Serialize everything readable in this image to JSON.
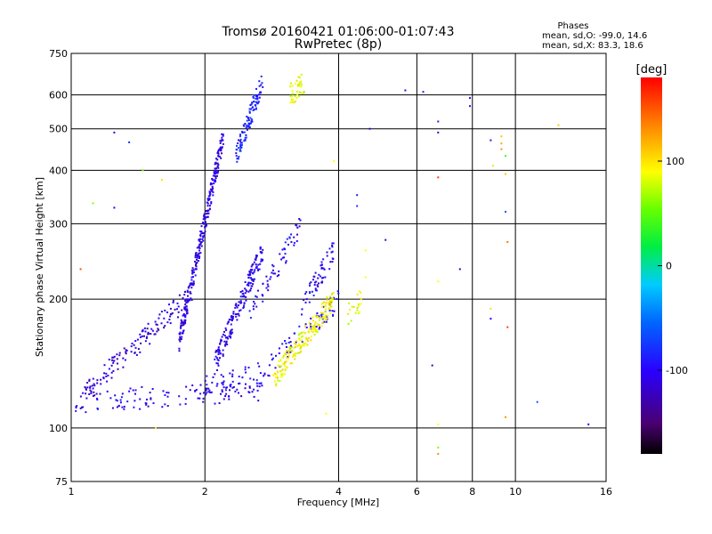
{
  "chart_data": {
    "type": "scatter",
    "title": "Tromsø 20160421 01:06:00-01:07:43",
    "subtitle": "RwPretec (8p)",
    "xlabel": "Frequency [MHz]",
    "ylabel": "Stationary phase Virtual Height [km]",
    "x_scale": "log",
    "y_scale": "log",
    "xlim": [
      1,
      16
    ],
    "ylim": [
      75,
      750
    ],
    "x_ticks": [
      "1",
      "2",
      "4",
      "6",
      "8",
      "10",
      "16"
    ],
    "y_ticks": [
      "750",
      "600",
      "500",
      "400",
      "300",
      "200",
      "100",
      "75"
    ],
    "grid": true,
    "phase_stats": {
      "heading": "Phases",
      "line_o": "mean, sd,O: -99.0, 14.6",
      "line_x": "mean, sd,X: 83.3, 18.6"
    },
    "colorbar": {
      "unit": "[deg]",
      "ticks": [
        "100",
        "0",
        "-100"
      ],
      "range": [
        -180,
        180
      ],
      "colormap": "rainbow"
    },
    "traces": [
      {
        "x_range": [
          1.02,
          2.7
        ],
        "y_start": 115,
        "y_end": 123,
        "phase_deg": -105,
        "n": 120
      },
      {
        "x_range": [
          2.0,
          2.7
        ],
        "y_start": 125,
        "y_end": 135,
        "phase_deg": -100,
        "n": 40
      },
      {
        "x_range": [
          2.7,
          4.0
        ],
        "y_start": 135,
        "y_end": 200,
        "phase_deg": -100,
        "n": 70
      },
      {
        "x_range": [
          1.05,
          1.9
        ],
        "y_start": 118,
        "y_end": 210,
        "phase_deg": -112,
        "n": 150
      },
      {
        "x_range": [
          1.75,
          2.2
        ],
        "y_start": 160,
        "y_end": 480,
        "phase_deg": -108,
        "n": 280
      },
      {
        "x_range": [
          2.1,
          2.7
        ],
        "y_start": 140,
        "y_end": 260,
        "phase_deg": -105,
        "n": 180
      },
      {
        "x_range": [
          2.5,
          3.3
        ],
        "y_start": 180,
        "y_end": 300,
        "phase_deg": -100,
        "n": 60
      },
      {
        "x_range": [
          3.3,
          3.9
        ],
        "y_start": 190,
        "y_end": 260,
        "phase_deg": -100,
        "n": 60
      },
      {
        "x_range": [
          2.35,
          2.7
        ],
        "y_start": 430,
        "y_end": 650,
        "phase_deg": -85,
        "n": 110
      },
      {
        "x_range": [
          2.85,
          3.9
        ],
        "y_start": 130,
        "y_end": 200,
        "phase_deg": 90,
        "n": 190
      },
      {
        "x_range": [
          3.1,
          3.35
        ],
        "y_start": 600,
        "y_end": 640,
        "phase_deg": 88,
        "n": 40
      },
      {
        "x_range": [
          4.2,
          4.5
        ],
        "y_start": 185,
        "y_end": 200,
        "phase_deg": 85,
        "n": 20
      }
    ],
    "points": [
      {
        "x": 1.05,
        "y": 235,
        "phase_deg": 150
      },
      {
        "x": 1.12,
        "y": 335,
        "phase_deg": 60
      },
      {
        "x": 1.25,
        "y": 327,
        "phase_deg": -110
      },
      {
        "x": 1.35,
        "y": 465,
        "phase_deg": -80
      },
      {
        "x": 1.45,
        "y": 400,
        "phase_deg": 60
      },
      {
        "x": 1.6,
        "y": 380,
        "phase_deg": 100
      },
      {
        "x": 1.25,
        "y": 490,
        "phase_deg": -110
      },
      {
        "x": 1.55,
        "y": 100,
        "phase_deg": 100
      },
      {
        "x": 3.75,
        "y": 108,
        "phase_deg": 90
      },
      {
        "x": 3.9,
        "y": 420,
        "phase_deg": 90
      },
      {
        "x": 4.4,
        "y": 350,
        "phase_deg": -90
      },
      {
        "x": 4.4,
        "y": 330,
        "phase_deg": -80
      },
      {
        "x": 4.7,
        "y": 500,
        "phase_deg": -110
      },
      {
        "x": 4.6,
        "y": 260,
        "phase_deg": 90
      },
      {
        "x": 4.6,
        "y": 225,
        "phase_deg": 90
      },
      {
        "x": 5.1,
        "y": 275,
        "phase_deg": -120
      },
      {
        "x": 5.65,
        "y": 615,
        "phase_deg": -110
      },
      {
        "x": 6.2,
        "y": 610,
        "phase_deg": -90
      },
      {
        "x": 6.7,
        "y": 520,
        "phase_deg": -90
      },
      {
        "x": 6.7,
        "y": 490,
        "phase_deg": -110
      },
      {
        "x": 6.7,
        "y": 385,
        "phase_deg": 160
      },
      {
        "x": 6.7,
        "y": 220,
        "phase_deg": 90
      },
      {
        "x": 6.5,
        "y": 140,
        "phase_deg": -130
      },
      {
        "x": 6.7,
        "y": 102,
        "phase_deg": 90
      },
      {
        "x": 6.7,
        "y": 90,
        "phase_deg": 60
      },
      {
        "x": 6.7,
        "y": 87,
        "phase_deg": 130
      },
      {
        "x": 7.5,
        "y": 235,
        "phase_deg": -120
      },
      {
        "x": 7.9,
        "y": 590,
        "phase_deg": -100
      },
      {
        "x": 7.9,
        "y": 565,
        "phase_deg": -110
      },
      {
        "x": 8.8,
        "y": 470,
        "phase_deg": -90
      },
      {
        "x": 8.8,
        "y": 190,
        "phase_deg": 100
      },
      {
        "x": 8.8,
        "y": 180,
        "phase_deg": -110
      },
      {
        "x": 8.9,
        "y": 410,
        "phase_deg": 100
      },
      {
        "x": 9.3,
        "y": 480,
        "phase_deg": 110
      },
      {
        "x": 9.3,
        "y": 462,
        "phase_deg": 120
      },
      {
        "x": 9.3,
        "y": 448,
        "phase_deg": 130
      },
      {
        "x": 9.5,
        "y": 392,
        "phase_deg": 110
      },
      {
        "x": 9.5,
        "y": 320,
        "phase_deg": -60
      },
      {
        "x": 9.6,
        "y": 272,
        "phase_deg": 140
      },
      {
        "x": 9.6,
        "y": 172,
        "phase_deg": 160
      },
      {
        "x": 9.5,
        "y": 106,
        "phase_deg": 130
      },
      {
        "x": 9.5,
        "y": 432,
        "phase_deg": 40
      },
      {
        "x": 11.2,
        "y": 115,
        "phase_deg": -60
      },
      {
        "x": 12.5,
        "y": 510,
        "phase_deg": 110
      },
      {
        "x": 14.6,
        "y": 102,
        "phase_deg": -100
      }
    ]
  }
}
